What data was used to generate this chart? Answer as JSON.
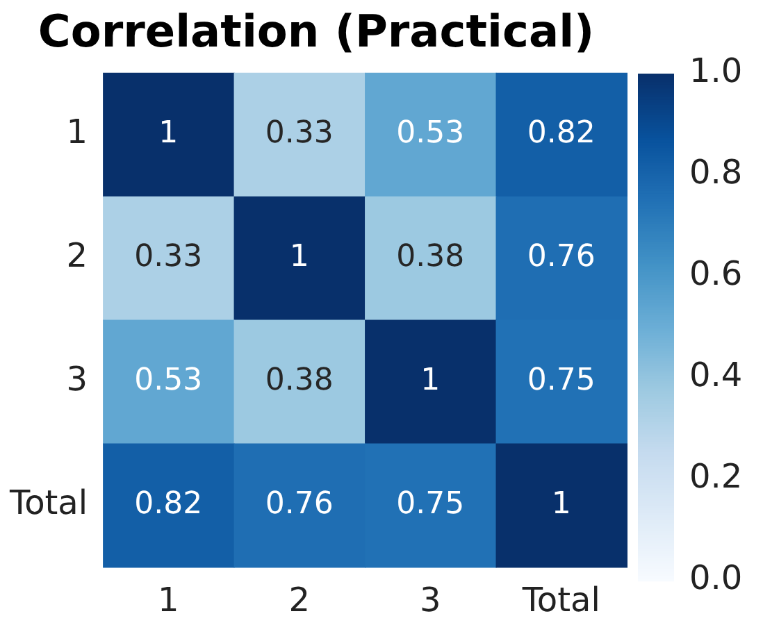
{
  "chart_data": {
    "type": "heatmap",
    "title": "Correlation (Practical)",
    "categories": [
      "1",
      "2",
      "3",
      "Total"
    ],
    "y_categories": [
      "1",
      "2",
      "3",
      "Total"
    ],
    "cells": [
      [
        1,
        0.33,
        0.53,
        0.82
      ],
      [
        0.33,
        1,
        0.38,
        0.76
      ],
      [
        0.53,
        0.38,
        1,
        0.75
      ],
      [
        0.82,
        0.76,
        0.75,
        1
      ]
    ],
    "data_labels": true,
    "clim": [
      0,
      1
    ],
    "cticks": [
      {
        "value": 0,
        "label": "0.0"
      },
      0.2,
      0.4,
      0.6,
      0.8,
      {
        "value": 1,
        "label": "1.0"
      }
    ]
  }
}
